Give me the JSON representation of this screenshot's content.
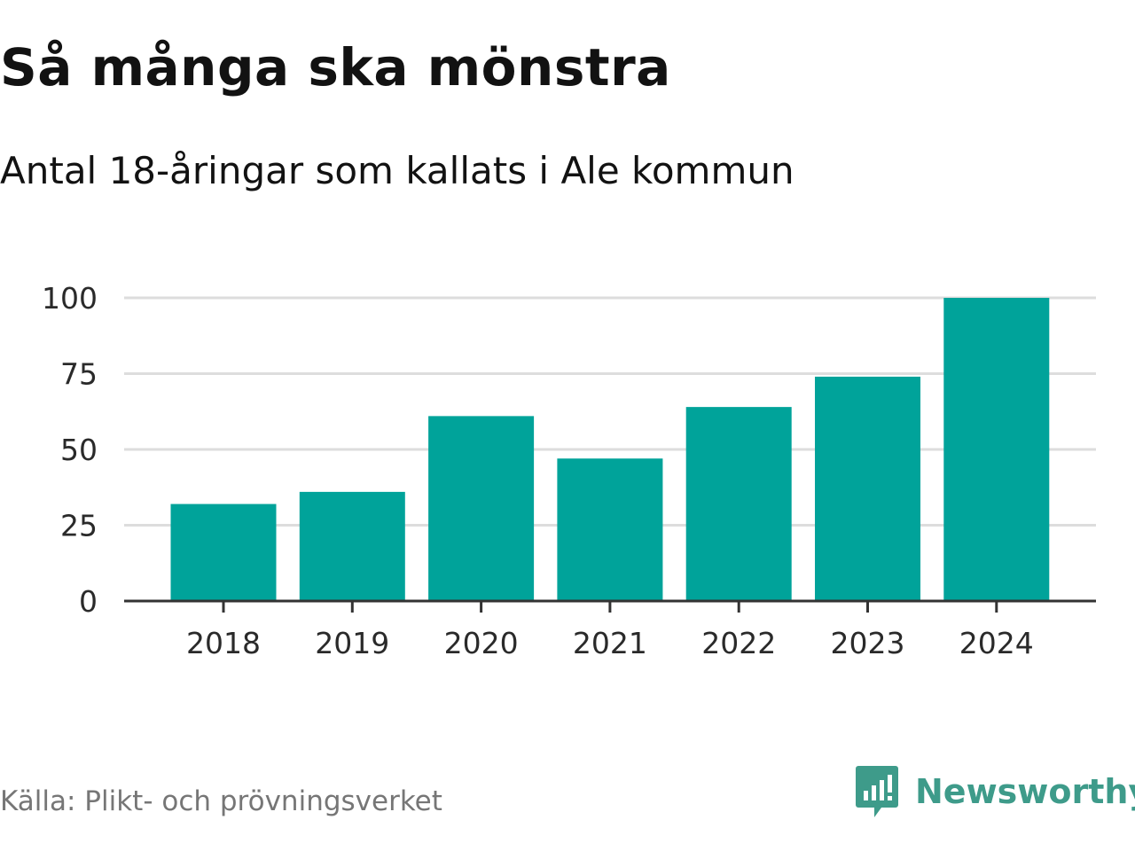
{
  "title": "Så många ska mönstra",
  "subtitle": "Antal 18-åringar som kallats i Ale kommun",
  "source": "Källa: Plikt- och prövningsverket",
  "brand": {
    "name": "Newsworthy",
    "icon": "newsworthy-logo-icon"
  },
  "colors": {
    "bar": "#00a39a",
    "grid": "#dddddd",
    "axis": "#333333",
    "brand": "#3e9b8a"
  },
  "chart_data": {
    "type": "bar",
    "categories": [
      "2018",
      "2019",
      "2020",
      "2021",
      "2022",
      "2023",
      "2024"
    ],
    "values": [
      32,
      36,
      61,
      47,
      64,
      74,
      100
    ],
    "yticks": [
      0,
      25,
      50,
      75,
      100
    ],
    "ylim": [
      0,
      100
    ],
    "grid": true,
    "xlabel": "",
    "ylabel": ""
  }
}
